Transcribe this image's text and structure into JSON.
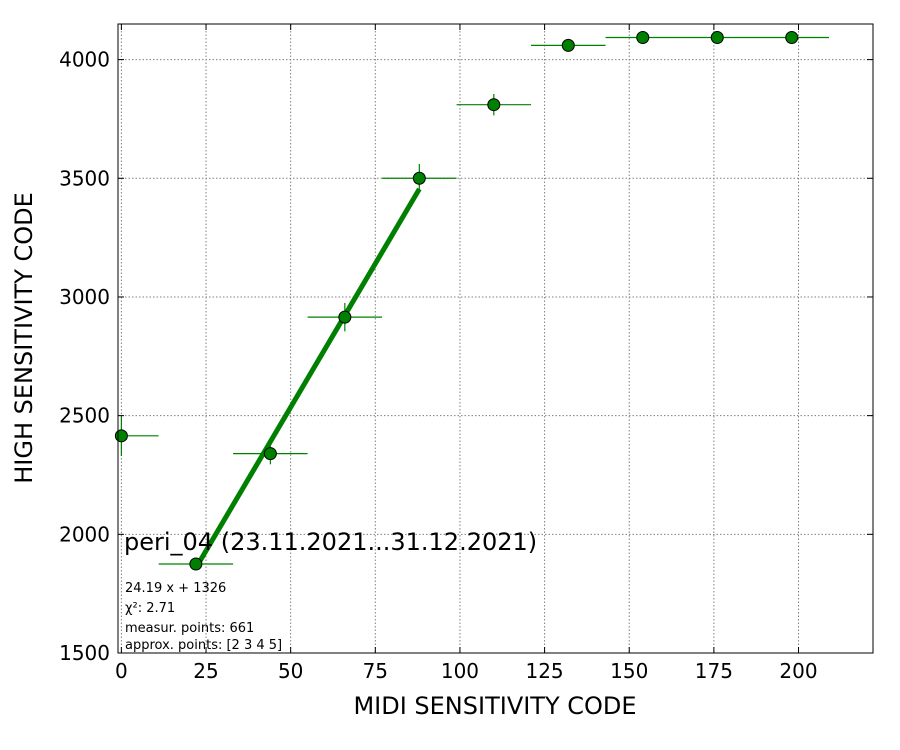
{
  "chart_data": {
    "type": "scatter",
    "title": "peri_04 (23.11.2021...31.12.2021)",
    "xlabel": "MIDI SENSITIVITY CODE",
    "ylabel": "HIGH SENSITIVITY CODE",
    "xlim": [
      -1,
      222
    ],
    "ylim": [
      1500,
      4150
    ],
    "x_ticks": [
      0,
      25,
      50,
      75,
      100,
      125,
      150,
      175,
      200
    ],
    "y_ticks": [
      1500,
      2000,
      2500,
      3000,
      3500,
      4000
    ],
    "grid": true,
    "series": [
      {
        "color": "#008000",
        "points": [
          {
            "x": 0,
            "y": 2415,
            "xerr": 11,
            "yerr": 85
          },
          {
            "x": 22,
            "y": 1875,
            "xerr": 11,
            "yerr": 8
          },
          {
            "x": 44,
            "y": 2340,
            "xerr": 11,
            "yerr": 45
          },
          {
            "x": 66,
            "y": 2915,
            "xerr": 11,
            "yerr": 60
          },
          {
            "x": 88,
            "y": 3500,
            "xerr": 11,
            "yerr": 60
          },
          {
            "x": 110,
            "y": 3810,
            "xerr": 11,
            "yerr": 45
          },
          {
            "x": 132,
            "y": 4060,
            "xerr": 11,
            "yerr": 8
          },
          {
            "x": 154,
            "y": 4093,
            "xerr": 11,
            "yerr": 5
          },
          {
            "x": 176,
            "y": 4093,
            "xerr": 11,
            "yerr": 5
          },
          {
            "x": 198,
            "y": 4093,
            "xerr": 11,
            "yerr": 5
          }
        ]
      }
    ],
    "fit": {
      "slope": 24.19,
      "intercept": 1326,
      "x_range": [
        22,
        88
      ],
      "color": "#008000"
    },
    "annotations": [
      "24.19 x + 1326",
      "χ²: 2.71",
      "measur. points: 661",
      "approx. points: [2 3 4 5]"
    ]
  }
}
